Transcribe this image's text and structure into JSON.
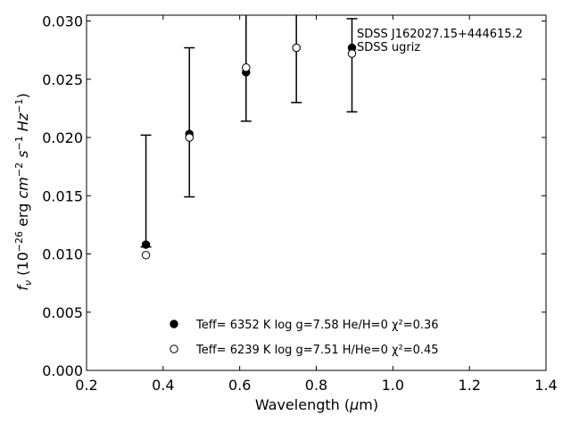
{
  "chart_data": {
    "type": "scatter",
    "xlabel": "Wavelength (μm)",
    "ylabel": "fν (10⁻²⁶ erg cm⁻² s⁻¹ Hz⁻¹)",
    "xlim": [
      0.2,
      1.4
    ],
    "ylim": [
      0.0,
      0.0305
    ],
    "xticks": [
      0.2,
      0.4,
      0.6,
      0.8,
      1.0,
      1.2,
      1.4
    ],
    "xtick_labels": [
      "0.2",
      "0.4",
      "0.6",
      "0.8",
      "1.0",
      "1.2",
      "1.4"
    ],
    "yticks": [
      0.0,
      0.005,
      0.01,
      0.015,
      0.02,
      0.025,
      0.03
    ],
    "ytick_labels": [
      "0.000",
      "0.005",
      "0.010",
      "0.015",
      "0.020",
      "0.025",
      "0.030"
    ],
    "grid": false,
    "legend_position": "bottom-center",
    "annotation_lines": [
      "SDSS J162027.15+444615.2",
      "SDSS ugriz"
    ],
    "observed": {
      "x": [
        0.3551,
        0.4686,
        0.6166,
        0.748,
        0.8932
      ],
      "y": [
        0.0154,
        0.0213,
        0.0261,
        0.0282,
        0.0262
      ],
      "yerr": [
        0.0048,
        0.0064,
        0.0047,
        0.0052,
        0.004
      ]
    },
    "series": [
      {
        "marker": "filled-circle",
        "legend_label": "Teff=  6352 K  log g=7.58  He/H=0  χ²=0.36",
        "x": [
          0.3551,
          0.4686,
          0.6166,
          0.748,
          0.8932
        ],
        "y": [
          0.0108,
          0.0203,
          0.0256,
          0.0277,
          0.0277
        ]
      },
      {
        "marker": "open-circle",
        "legend_label": "Teff=  6239 K  log g=7.51  H/He=0  χ²=0.45",
        "x": [
          0.3551,
          0.4686,
          0.6166,
          0.748,
          0.8932
        ],
        "y": [
          0.0099,
          0.02,
          0.026,
          0.0277,
          0.0272
        ]
      }
    ],
    "colors": {
      "marker": "#000000",
      "errorbar": "#000000",
      "axes": "#000000"
    }
  }
}
